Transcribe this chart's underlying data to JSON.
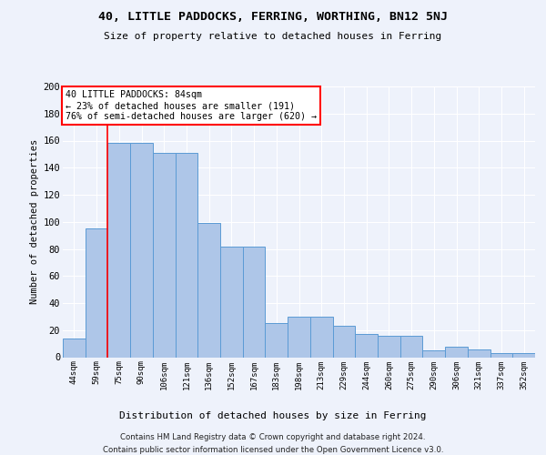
{
  "title": "40, LITTLE PADDOCKS, FERRING, WORTHING, BN12 5NJ",
  "subtitle": "Size of property relative to detached houses in Ferring",
  "xlabel": "Distribution of detached houses by size in Ferring",
  "ylabel": "Number of detached properties",
  "categories": [
    "44sqm",
    "59sqm",
    "75sqm",
    "90sqm",
    "106sqm",
    "121sqm",
    "136sqm",
    "152sqm",
    "167sqm",
    "183sqm",
    "198sqm",
    "213sqm",
    "229sqm",
    "244sqm",
    "260sqm",
    "275sqm",
    "290sqm",
    "306sqm",
    "321sqm",
    "337sqm",
    "352sqm"
  ],
  "values": [
    14,
    95,
    158,
    158,
    151,
    151,
    99,
    82,
    82,
    25,
    30,
    30,
    23,
    17,
    16,
    16,
    5,
    8,
    6,
    3,
    3
  ],
  "bar_color": "#aec6e8",
  "bar_edge_color": "#5b9bd5",
  "vline_x": 1.5,
  "vline_color": "red",
  "annotation_text": "40 LITTLE PADDOCKS: 84sqm\n← 23% of detached houses are smaller (191)\n76% of semi-detached houses are larger (620) →",
  "annotation_box_color": "white",
  "annotation_box_edge_color": "red",
  "footer1": "Contains HM Land Registry data © Crown copyright and database right 2024.",
  "footer2": "Contains public sector information licensed under the Open Government Licence v3.0.",
  "ylim": [
    0,
    200
  ],
  "yticks": [
    0,
    20,
    40,
    60,
    80,
    100,
    120,
    140,
    160,
    180,
    200
  ],
  "background_color": "#eef2fb",
  "plot_bg_color": "#eef2fb",
  "grid_color": "#ffffff"
}
